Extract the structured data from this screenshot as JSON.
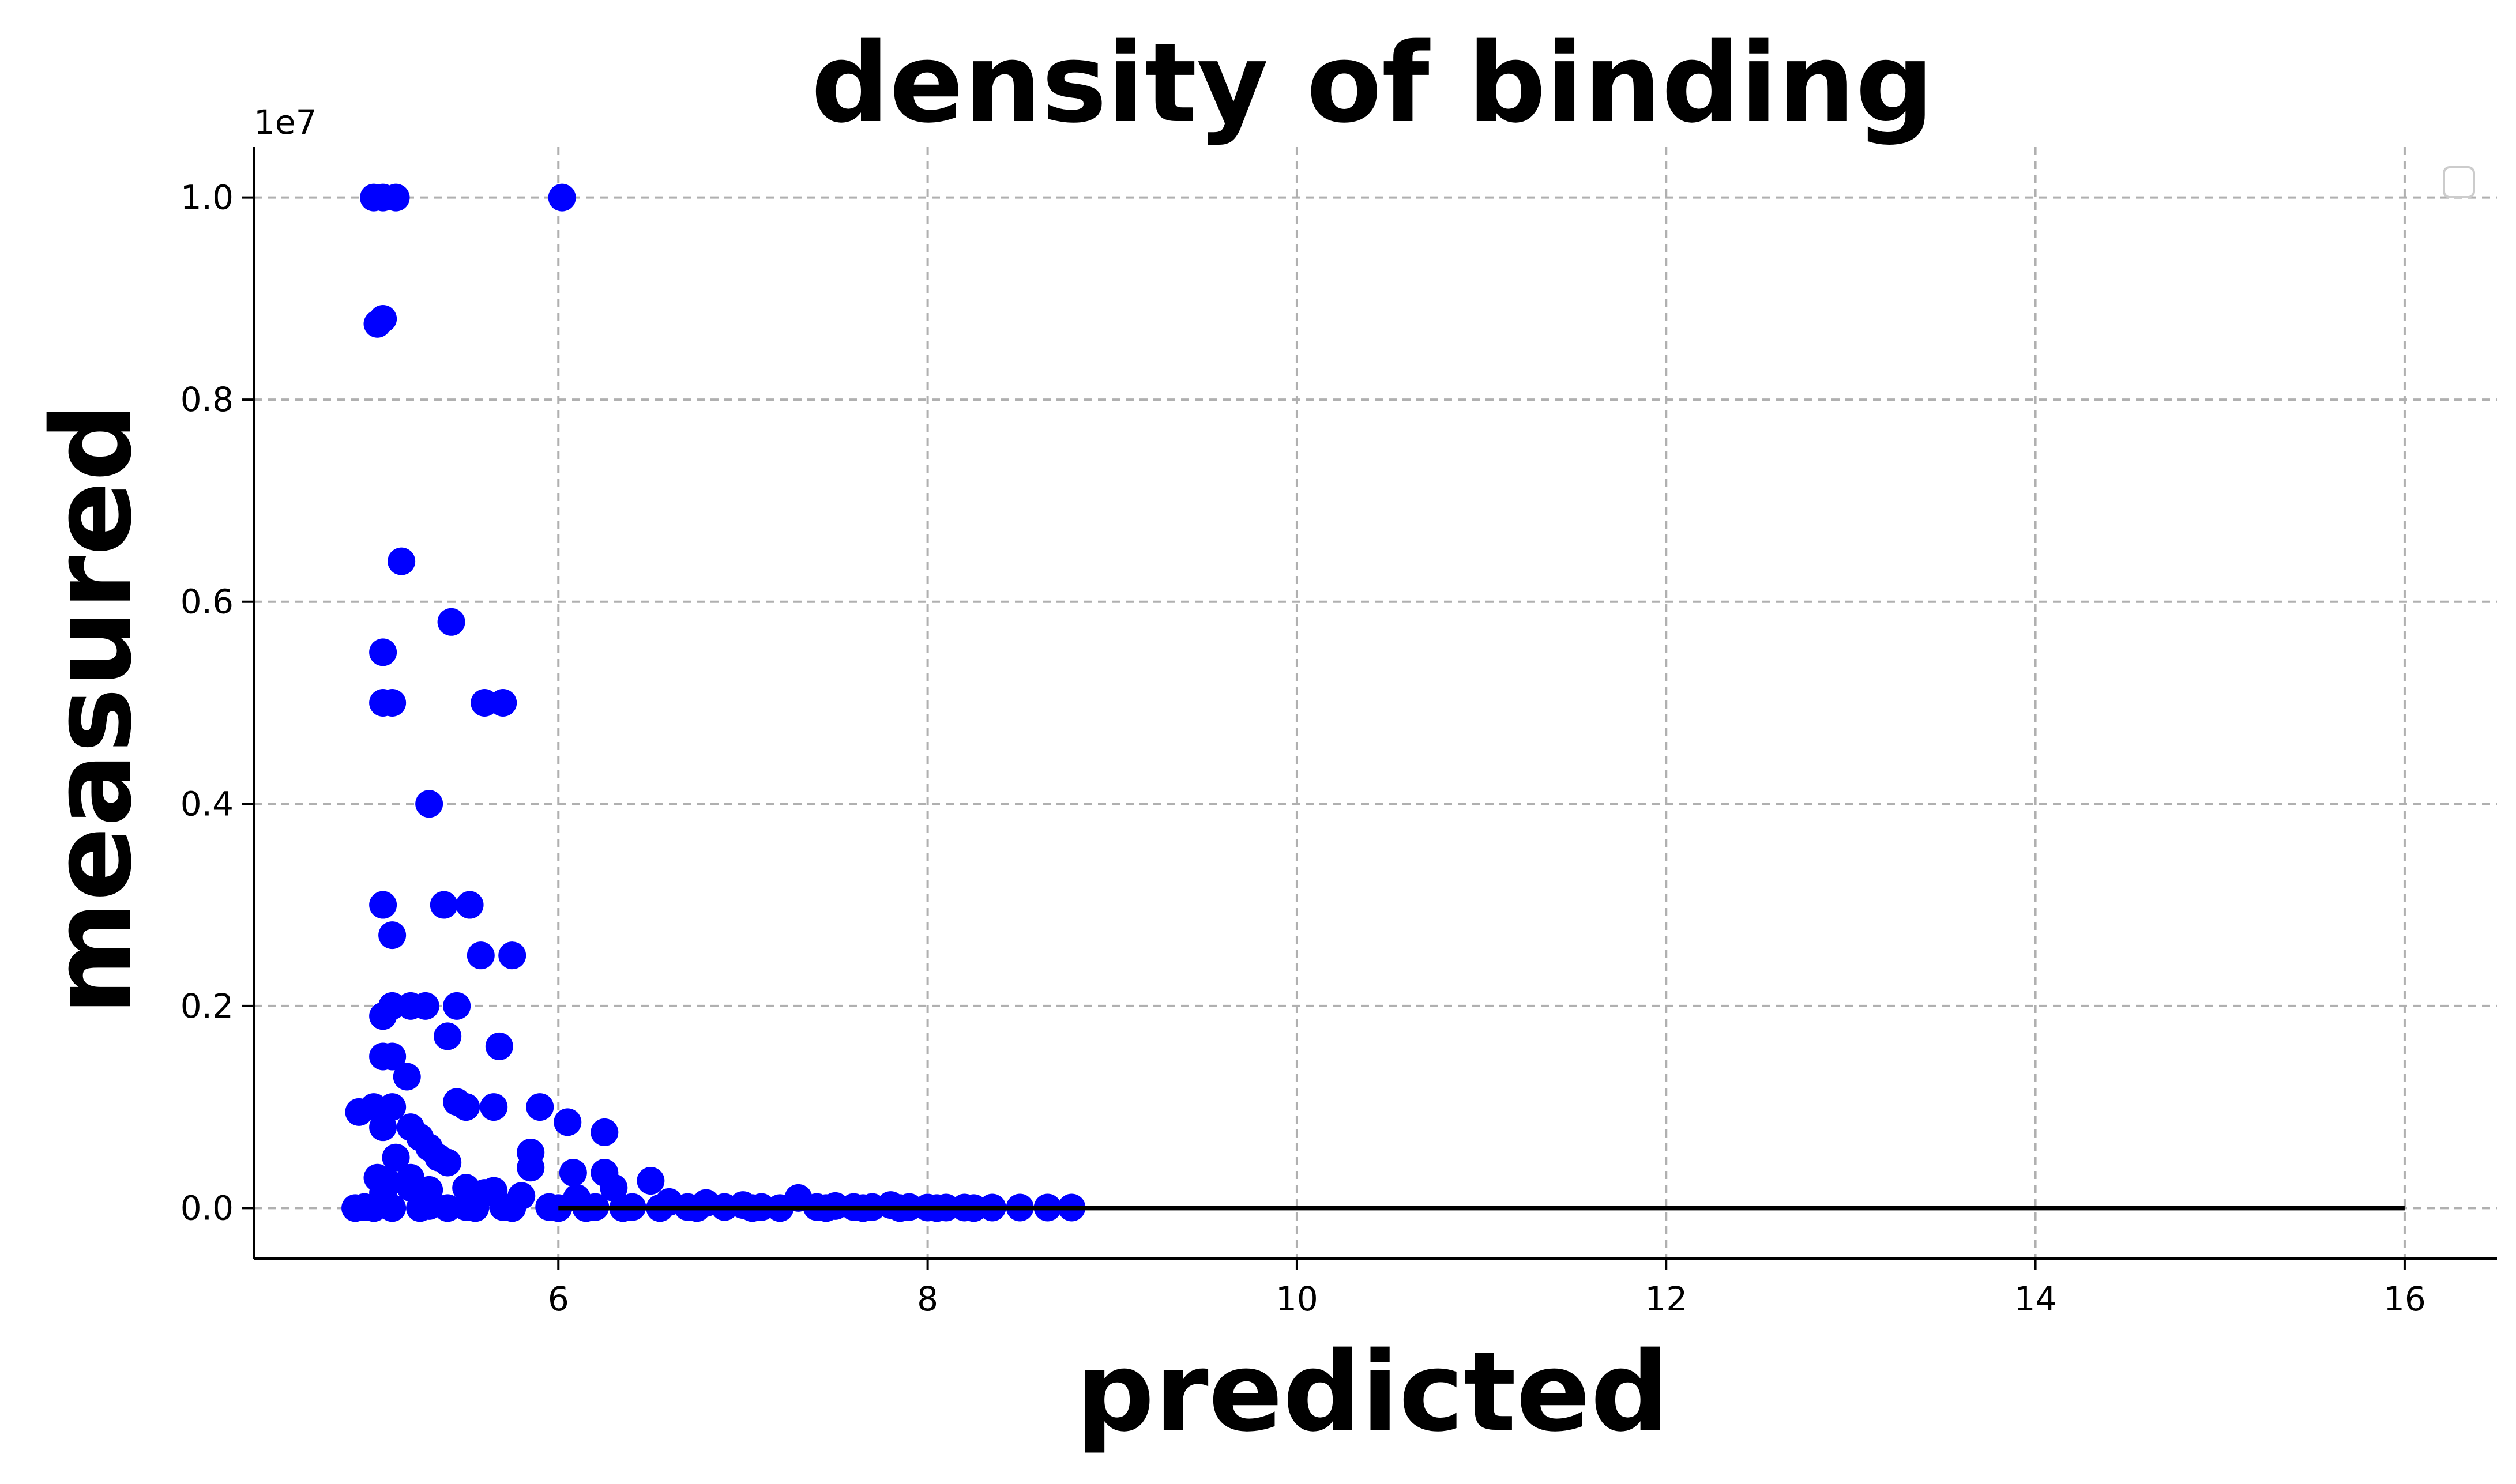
{
  "chart_data": {
    "type": "scatter",
    "title": "density of binding",
    "xlabel": "predicted",
    "ylabel": "measured",
    "xlim": [
      4.35,
      16.5
    ],
    "ylim": [
      -500000,
      10500000
    ],
    "y_offset_label": "1e7",
    "x_ticks": [
      6,
      8,
      10,
      12,
      14,
      16
    ],
    "x_tick_labels": [
      "6",
      "8",
      "10",
      "12",
      "14",
      "16"
    ],
    "y_ticks": [
      0,
      2000000,
      4000000,
      6000000,
      8000000,
      10000000
    ],
    "y_tick_labels": [
      "0.0",
      "0.2",
      "0.4",
      "0.6",
      "0.8",
      "1.0"
    ],
    "grid": true,
    "legend": {
      "placement": "top-right",
      "entries": []
    },
    "series": [
      {
        "color": "#0000ff",
        "x": [
          5.0,
          5.05,
          5.12,
          6.02,
          5.05,
          5.02,
          5.15,
          5.42,
          5.05,
          5.05,
          5.1,
          5.6,
          5.7,
          5.3,
          5.05,
          5.38,
          5.52,
          5.1,
          5.58,
          5.75,
          5.1,
          5.2,
          5.28,
          5.45,
          5.05,
          5.4,
          5.68,
          5.05,
          5.1,
          5.18,
          4.92,
          5.0,
          5.1,
          5.45,
          5.5,
          5.65,
          5.9,
          6.05,
          6.25,
          5.05,
          5.2,
          5.25,
          5.3,
          5.35,
          5.4,
          5.12,
          5.85,
          5.85,
          6.08,
          5.02,
          5.08,
          5.2,
          6.25,
          6.5,
          6.3,
          5.05,
          5.2,
          5.3,
          5.5,
          5.6,
          5.65,
          5.8,
          6.1,
          6.6,
          6.8,
          7.3,
          7.0,
          7.5,
          7.8,
          4.95,
          5.3,
          5.5,
          5.7,
          5.95,
          6.2,
          6.4,
          6.7,
          6.9,
          7.1,
          7.4,
          7.6,
          7.7,
          7.9,
          8.0,
          8.1,
          8.2,
          8.35,
          8.5,
          8.65,
          8.78,
          4.9,
          5.0,
          5.1,
          5.25,
          5.4,
          5.55,
          5.75,
          6.0,
          6.15,
          6.35,
          6.55,
          6.75,
          7.05,
          7.2,
          7.45,
          7.65,
          7.85,
          8.05,
          8.25
        ],
        "y": [
          10000000,
          10000000,
          10000000,
          10000000,
          8800000,
          8750000,
          6400000,
          5800000,
          5500000,
          5000000,
          5000000,
          5000000,
          5000000,
          4000000,
          3000000,
          3000000,
          3000000,
          2700000,
          2500000,
          2500000,
          2000000,
          2000000,
          2000000,
          2000000,
          1900000,
          1700000,
          1600000,
          1500000,
          1500000,
          1300000,
          950000,
          1000000,
          1000000,
          1050000,
          1000000,
          1000000,
          1000000,
          850000,
          750000,
          800000,
          800000,
          700000,
          600000,
          500000,
          450000,
          500000,
          550000,
          400000,
          350000,
          300000,
          250000,
          300000,
          350000,
          270000,
          200000,
          150000,
          200000,
          180000,
          200000,
          150000,
          170000,
          120000,
          100000,
          60000,
          50000,
          100000,
          30000,
          20000,
          30000,
          10000,
          20000,
          10000,
          10000,
          10000,
          10000,
          10000,
          10000,
          10000,
          10000,
          10000,
          10000,
          10000,
          10000,
          5000,
          5000,
          5000,
          5000,
          5000,
          5000,
          5000,
          0,
          0,
          0,
          0,
          0,
          0,
          0,
          0,
          0,
          0,
          0,
          0,
          0,
          0,
          0,
          0,
          0,
          0,
          0
        ]
      },
      {
        "type": "line",
        "color": "#000000",
        "x": [
          6,
          16
        ],
        "y": [
          0,
          0
        ]
      }
    ]
  }
}
